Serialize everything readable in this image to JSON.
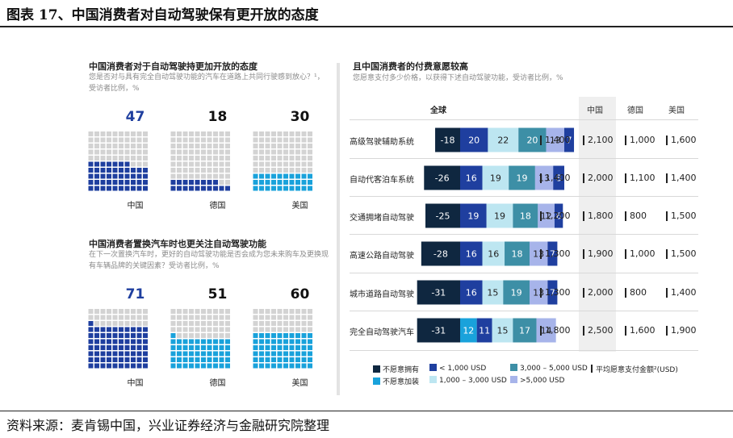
{
  "figure_title": "图表 17、中国消费者对自动驾驶保有更开放的态度",
  "source": "资料来源：麦肯锡中国，兴业证券经济与金融研究院整理",
  "colors": {
    "very_dark": "#0f2740",
    "blue": "#1f3f9f",
    "teal": "#3d8fa6",
    "cyan": "#19a2db",
    "light_cyan": "#bde6f1",
    "lavender": "#a7b4ea",
    "grey": "#d3d3d3"
  },
  "left_top": {
    "title": "中国消费者对于自动驾驶持更加开放的态度",
    "subtitle": "您是否对与具有完全自动驾驶功能的汽车在道路上共同行驶感到放心？¹，受访者比例，%"
  },
  "left_bottom": {
    "title": "中国消费者置换汽车时也更关注自动驾驶功能",
    "subtitle": "在下一次置换汽车时，更好的自动驾驶功能是否会成为您未来购车及更换现有车辆品牌的关键因素？受访者比例，%"
  },
  "right": {
    "title": "且中国消费者的付费意愿较高",
    "subtitle": "您愿意支付多少价格，以获得下述自动驾驶功能，受访者比例，%",
    "col_global": "全球",
    "col_china": "中国",
    "col_germany": "德国",
    "col_usa": "美国"
  },
  "legend": {
    "unwilling_own": "不愿意拥有",
    "lt1000": "< 1,000 USD",
    "b3000_5000": "3,000 – 5,000 USD",
    "avg": "平均愿意支付金额²(USD)",
    "unwilling_add": "不愿意加装",
    "b1000_3000": "1,000 – 3,000 USD",
    "gt5000": ">5,000 USD"
  },
  "chart_data": [
    {
      "type": "waffle",
      "title": "中国消费者对于自动驾驶持更加开放的态度",
      "unit": "%",
      "categories": [
        "中国",
        "德国",
        "美国"
      ],
      "values": [
        47,
        18,
        30
      ],
      "highlight_colors": [
        "#1f3f9f",
        "#1f3f9f",
        "#19a2db"
      ]
    },
    {
      "type": "waffle",
      "title": "中国消费者置换汽车时也更关注自动驾驶功能",
      "unit": "%",
      "categories": [
        "中国",
        "德国",
        "美国"
      ],
      "values": [
        71,
        51,
        60
      ],
      "highlight_colors": [
        "#1f3f9f",
        "#19a2db",
        "#19a2db"
      ]
    },
    {
      "type": "bar",
      "orientation": "horizontal-stacked",
      "title": "且中国消费者的付费意愿较高",
      "unit": "%",
      "categories": [
        "高级驾驶辅助系统",
        "自动代客泊车系统",
        "交通拥堵自动驾驶",
        "高速公路自动驾驶",
        "城市道路自动驾驶",
        "完全自动驾驶汽车"
      ],
      "series": [
        {
          "name": "不愿意拥有",
          "color": "#0f2740",
          "values": [
            -18,
            -26,
            -25,
            -28,
            -31,
            -31
          ]
        },
        {
          "name": "不愿意加装",
          "color": "#19a2db",
          "values": [
            null,
            null,
            null,
            null,
            null,
            12
          ]
        },
        {
          "name": "< 1,000 USD",
          "color": "#1f3f9f",
          "values": [
            20,
            16,
            19,
            16,
            16,
            11
          ]
        },
        {
          "name": "1,000 – 3,000 USD",
          "color": "#bde6f1",
          "values": [
            22,
            19,
            19,
            16,
            15,
            15
          ]
        },
        {
          "name": "3,000 – 5,000 USD",
          "color": "#3d8fa6",
          "values": [
            20,
            19,
            18,
            18,
            19,
            17
          ]
        },
        {
          "name": ">5,000 USD",
          "color": "#a7b4ea",
          "values": [
            13,
            13,
            12,
            13,
            13,
            14
          ]
        },
        {
          "name": "",
          "color": "#1f3f9f",
          "values": [
            7,
            8,
            6,
            7,
            7,
            null
          ]
        }
      ],
      "segment_labels": [
        [
          "-18",
          "20",
          "22",
          "20",
          "13",
          "7"
        ],
        [
          "-26",
          "16",
          "19",
          "19",
          "13",
          "8"
        ],
        [
          "-25",
          "19",
          "19",
          "18",
          "12",
          "6"
        ],
        [
          "-28",
          "16",
          "16",
          "18",
          "13",
          "7"
        ],
        [
          "-31",
          "16",
          "15",
          "19",
          "13",
          "7"
        ],
        [
          "-31",
          "12",
          "11",
          "15",
          "17",
          "14"
        ]
      ],
      "avg_willingness_usd": {
        "global": [
          "1,400",
          "1,400",
          "1,200",
          "1,300",
          "1,300",
          "1,800"
        ],
        "china": [
          "2,100",
          "2,000",
          "1,800",
          "1,900",
          "2,000",
          "2,500"
        ],
        "germany": [
          "1,000",
          "1,100",
          "800",
          "1,000",
          "800",
          "1,600"
        ],
        "usa": [
          "1,600",
          "1,400",
          "1,500",
          "1,500",
          "1,400",
          "1,900"
        ]
      }
    }
  ]
}
